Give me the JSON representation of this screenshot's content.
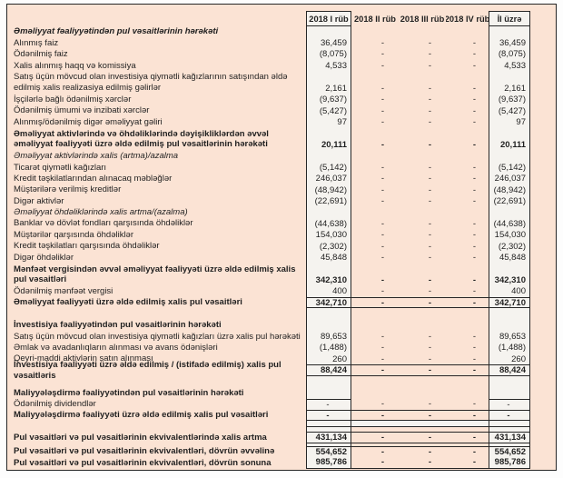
{
  "colors": {
    "table_background": "#fbe3d4",
    "value_column_background": "#f5f3ef",
    "border": "#262626",
    "text": "#1f1f1f"
  },
  "header": {
    "columns": [
      "2018 I rüb",
      "2018 II rüb",
      "2018 III rüb",
      "2018 IV rüb",
      "İl üzrə"
    ]
  },
  "rows": [
    {
      "label": "Əməliyyat fəaliyyətindən pul vəsaitlərinin hərəkəti",
      "style": "boldital",
      "values": [
        "",
        "",
        "",
        "",
        ""
      ]
    },
    {
      "label": "Alınmış faiz",
      "style": "norm",
      "values": [
        "36,459",
        "-",
        "-",
        "-",
        "36,459"
      ]
    },
    {
      "label": "Ödənilmiş faiz",
      "style": "norm",
      "values": [
        "(8,075)",
        "-",
        "-",
        "-",
        "(8,075)"
      ]
    },
    {
      "label": "Xalis alınmış haqq və komissiya",
      "style": "norm",
      "values": [
        "4,533",
        "-",
        "-",
        "-",
        "4,533"
      ]
    },
    {
      "label": "Satış üçün mövcud olan investisiya qiymətli kağızlarının satışından əldə edilmiş xalis realizasiya edilmiş gəlirlər",
      "style": "norm two",
      "values": [
        "2,161",
        "-",
        "-",
        "-",
        "2,161"
      ]
    },
    {
      "label": "İşçilərlə bağlı ödənilmiş xərclər",
      "style": "norm",
      "values": [
        "(9,637)",
        "-",
        "-",
        "-",
        "(9,637)"
      ]
    },
    {
      "label": "Ödənilmiş ümumi və inzibati xərclər",
      "style": "norm",
      "values": [
        "(5,427)",
        "-",
        "-",
        "-",
        "(5,427)"
      ]
    },
    {
      "label": "Alınmış/ödənilmiş digər əməliyyat gəliri",
      "style": "norm",
      "values": [
        "97",
        "-",
        "-",
        "-",
        "97"
      ]
    },
    {
      "label": "Əməliyyat aktivlərində və öhdəliklərində dəyişikliklərdən əvvəl əməliyyat fəaliyyəti üzrə əldə edilmiş pul vəsaitlərinin hərəkəti",
      "style": "bold two",
      "values": [
        "20,111",
        "-",
        "-",
        "-",
        "20,111"
      ]
    },
    {
      "label": "Əməliyyat aktivlərində xalis (artma)/azalma",
      "style": "ital",
      "values": [
        "",
        "",
        "",
        "",
        ""
      ]
    },
    {
      "label": "Ticarət qiymətli kağızları",
      "style": "norm",
      "values": [
        "(5,142)",
        "-",
        "-",
        "-",
        "(5,142)"
      ]
    },
    {
      "label": "Kredit təşkilatlarından alınacaq məbləğlər",
      "style": "norm",
      "values": [
        "246,037",
        "-",
        "-",
        "-",
        "246,037"
      ]
    },
    {
      "label": "Müştərilərə verilmiş kreditlər",
      "style": "norm",
      "values": [
        "(48,942)",
        "-",
        "-",
        "-",
        "(48,942)"
      ]
    },
    {
      "label": "Digər aktivlər",
      "style": "norm",
      "values": [
        "(22,691)",
        "-",
        "-",
        "-",
        "(22,691)"
      ]
    },
    {
      "label": "Əməliyyat öhdəliklərində xalis artma/(azalma)",
      "style": "ital",
      "values": [
        "",
        "",
        "",
        "",
        ""
      ]
    },
    {
      "label": "Banklar və dövlət fondları qarşısında öhdəliklər",
      "style": "norm",
      "values": [
        "(44,638)",
        "-",
        "-",
        "-",
        "(44,638)"
      ]
    },
    {
      "label": "Müştərilər qarşısında öhdəliklər",
      "style": "norm",
      "values": [
        "154,030",
        "-",
        "-",
        "-",
        "154,030"
      ]
    },
    {
      "label": "Kredit təşkilatları qarşısında öhdəliklər",
      "style": "norm",
      "values": [
        "(2,302)",
        "-",
        "-",
        "-",
        "(2,302)"
      ]
    },
    {
      "label": "Digər öhdəliklər",
      "style": "norm",
      "values": [
        "45,848",
        "-",
        "-",
        "-",
        "45,848"
      ]
    },
    {
      "label": "Mənfəət vergisindən əvvəl əməliyyat fəaliyyəti üzrə əldə edilmiş xalis pul vəsaitləri",
      "style": "bold two",
      "values": [
        "342,310",
        "-",
        "-",
        "-",
        "342,310"
      ]
    },
    {
      "label": "Ödənilmiş mənfəət vergisi",
      "style": "norm",
      "values": [
        "400",
        "-",
        "-",
        "-",
        "400"
      ]
    },
    {
      "label": "Əməliyyat fəaliyyəti üzrə əldə edilmiş xalis pul vəsaitləri",
      "style": "total",
      "values": [
        "342,710",
        "-",
        "-",
        "-",
        "342,710"
      ]
    },
    {
      "label": "",
      "style": "blank",
      "values": [
        "",
        "",
        "",
        "",
        ""
      ]
    },
    {
      "label": "İnvestisiya fəaliyyətindən pul vəsaitlərinin hərəkəti",
      "style": "bold",
      "values": [
        "",
        "",
        "",
        "",
        ""
      ]
    },
    {
      "label": "Satış üçün mövcud olan investisiya qiymətli kağızları üzrə xalis pul hərəkəti",
      "style": "norm",
      "values": [
        "89,653",
        "-",
        "-",
        "-",
        "89,653"
      ]
    },
    {
      "label": "Əmlak və avadanlıqların alınması və avans ödənişləri",
      "style": "norm",
      "values": [
        "(1,488)",
        "-",
        "-",
        "-",
        "(1,488)"
      ]
    },
    {
      "label": "Qeyri-maddi aktivlərin satın alınması",
      "style": "norm",
      "values": [
        "260",
        "-",
        "-",
        "-",
        "260"
      ]
    },
    {
      "label": "İnvestisiya fəaliyyəti üzrə əldə edilmiş / (istifadə edilmiş) xalis pul vəsaitləris",
      "style": "total",
      "values": [
        "88,424",
        "-",
        "-",
        "-",
        "88,424"
      ]
    },
    {
      "label": "",
      "style": "blank",
      "values": [
        "",
        "",
        "",
        "",
        ""
      ]
    },
    {
      "label": "Maliyyələşdirmə fəaliyyətindən pul vəsaitlərinin hərəkəti",
      "style": "bold",
      "values": [
        "",
        "",
        "",
        "",
        ""
      ]
    },
    {
      "label": "Ödənilmiş dividendlər",
      "style": "norm celltop",
      "values": [
        "-",
        "-",
        "-",
        "-",
        "-"
      ]
    },
    {
      "label": "Maliyyələşdirmə fəaliyyəti üzrə əldə edilmiş xalis pul vəsaitləri",
      "style": "total",
      "values": [
        "-",
        "-",
        "-",
        "-",
        "-"
      ]
    },
    {
      "label": "",
      "style": "strip",
      "values": [
        "",
        "",
        "",
        "",
        ""
      ]
    },
    {
      "label": "",
      "style": "gap",
      "values": [
        "",
        "",
        "",
        "",
        ""
      ]
    },
    {
      "label": "Pul vəsaitləri və pul vəsaitlərinin ekvivalentlərində xalis artma",
      "style": "total",
      "values": [
        "431,134",
        "-",
        "-",
        "-",
        "431,134"
      ]
    },
    {
      "label": "",
      "style": "gap3",
      "values": [
        "",
        "",
        "",
        "",
        ""
      ]
    },
    {
      "label": "Pul vəsaitləri və pul vəsaitlərinin ekvivalentləri, dövrün əvvəlinə",
      "style": "total-top",
      "values": [
        "554,652",
        "-",
        "-",
        "-",
        "554,652"
      ]
    },
    {
      "label": "Pul vəsaitləri və pul vəsaitlərinin ekvivalentləri, dövrün sonuna",
      "style": "total-bottom",
      "values": [
        "985,786",
        "-",
        "-",
        "-",
        "985,786"
      ]
    }
  ]
}
